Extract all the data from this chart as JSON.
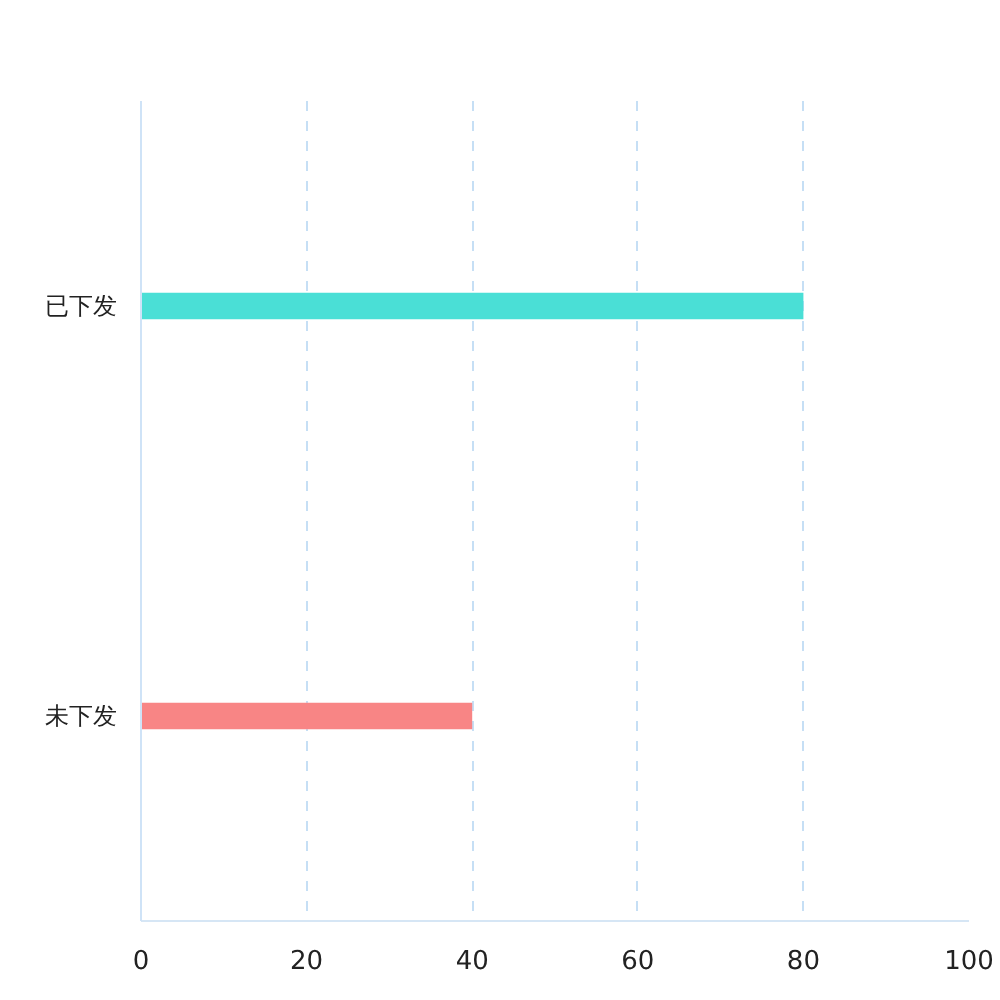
{
  "chart_data": {
    "type": "bar",
    "orientation": "horizontal",
    "categories": [
      "已下发",
      "未下发"
    ],
    "values": [
      80,
      40
    ],
    "colors": [
      "#4adfd6",
      "#f88585"
    ],
    "xlim": [
      0,
      100
    ],
    "xticks": [
      0,
      20,
      40,
      60,
      80,
      100
    ],
    "grid": "x"
  }
}
